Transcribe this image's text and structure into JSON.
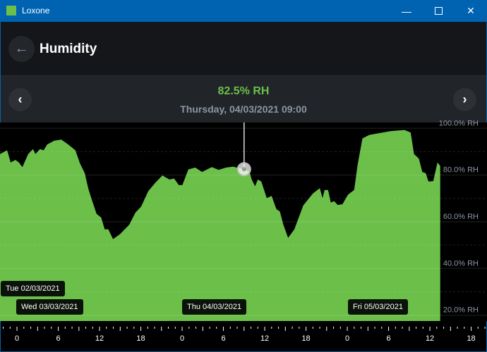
{
  "window": {
    "title": "Loxone",
    "app_icon": "loxone-logo-icon",
    "minimize_icon": "minimize-icon",
    "maximize_icon": "maximize-icon",
    "close_icon": "close-icon"
  },
  "header": {
    "title": "Humidity",
    "back_icon": "arrow-left-icon"
  },
  "readout": {
    "value": "82.5% RH",
    "datetime": "Thursday, 04/03/2021 09:00",
    "prev_icon": "chevron-left-icon",
    "next_icon": "chevron-right-icon"
  },
  "colors": {
    "titlebar": "#0063b1",
    "accent": "#6cc04a",
    "fill": "#6cc04a",
    "background": "#000000"
  },
  "day_labels": [
    "Tue 02/03/2021",
    "Wed 03/03/2021",
    "Thu 04/03/2021",
    "Fri 05/03/2021"
  ],
  "chart_data": {
    "type": "area",
    "ylim": [
      17.5,
      102.5
    ],
    "y_ticks": [
      100,
      80,
      60,
      40,
      20
    ],
    "y_tick_labels": [
      "100.0% RH",
      "80.0% RH",
      "60.0% RH",
      "40.0% RH",
      "20.0% RH"
    ],
    "xlim": [
      "2021-03-02 21:32",
      "2021-03-05 20:18"
    ],
    "x_tick_labels": [
      "0",
      "6",
      "12",
      "18",
      "0",
      "6",
      "12",
      "18",
      "0",
      "6",
      "12",
      "18"
    ],
    "grid": true,
    "selected_point": {
      "x": "2021-03-04 09:00",
      "y": 82.5
    },
    "series": [
      {
        "points": [
          [
            "2021-03-02 21:32",
            89.0
          ],
          [
            "2021-03-02 22:34",
            90.6
          ],
          [
            "2021-03-02 23:05",
            85.4
          ],
          [
            "2021-03-02 23:46",
            86.5
          ],
          [
            "2021-03-03 00:16",
            85.4
          ],
          [
            "2021-03-03 00:47",
            83.4
          ],
          [
            "2021-03-03 01:38",
            89.0
          ],
          [
            "2021-03-03 02:20",
            91.1
          ],
          [
            "2021-03-03 02:40",
            89.0
          ],
          [
            "2021-03-03 03:21",
            91.1
          ],
          [
            "2021-03-03 03:52",
            90.6
          ],
          [
            "2021-03-03 04:23",
            93.1
          ],
          [
            "2021-03-03 05:24",
            94.7
          ],
          [
            "2021-03-03 06:26",
            95.2
          ],
          [
            "2021-03-03 07:27",
            93.1
          ],
          [
            "2021-03-03 08:29",
            90.6
          ],
          [
            "2021-03-03 09:10",
            84.9
          ],
          [
            "2021-03-03 09:51",
            80.8
          ],
          [
            "2021-03-03 10:22",
            74.2
          ],
          [
            "2021-03-03 10:52",
            69.5
          ],
          [
            "2021-03-03 11:34",
            63.4
          ],
          [
            "2021-03-03 12:14",
            61.8
          ],
          [
            "2021-03-03 12:45",
            56.7
          ],
          [
            "2021-03-03 13:16",
            56.8
          ],
          [
            "2021-03-03 13:57",
            52.6
          ],
          [
            "2021-03-03 14:58",
            54.7
          ],
          [
            "2021-03-03 16:20",
            58.8
          ],
          [
            "2021-03-03 17:12",
            63.9
          ],
          [
            "2021-03-03 18:03",
            66.5
          ],
          [
            "2021-03-03 19:05",
            73.1
          ],
          [
            "2021-03-03 20:06",
            76.7
          ],
          [
            "2021-03-03 21:08",
            79.8
          ],
          [
            "2021-03-03 22:09",
            78.1
          ],
          [
            "2021-03-03 22:50",
            78.5
          ],
          [
            "2021-03-03 23:31",
            75.7
          ],
          [
            "2021-03-04 00:02",
            75.7
          ],
          [
            "2021-03-04 00:54",
            82.4
          ],
          [
            "2021-03-04 01:54",
            83.2
          ],
          [
            "2021-03-04 02:54",
            81.3
          ],
          [
            "2021-03-04 04:18",
            83.4
          ],
          [
            "2021-03-04 05:18",
            82.2
          ],
          [
            "2021-03-04 06:24",
            83.2
          ],
          [
            "2021-03-04 07:24",
            83.6
          ],
          [
            "2021-03-04 08:24",
            82.9
          ],
          [
            "2021-03-04 09:00",
            82.5
          ],
          [
            "2021-03-04 09:48",
            81.3
          ],
          [
            "2021-03-04 10:06",
            78.2
          ],
          [
            "2021-03-04 10:36",
            75.2
          ],
          [
            "2021-03-04 11:00",
            78.1
          ],
          [
            "2021-03-04 11:30",
            77.2
          ],
          [
            "2021-03-04 12:18",
            70.1
          ],
          [
            "2021-03-04 13:00",
            71.1
          ],
          [
            "2021-03-04 13:42",
            65.4
          ],
          [
            "2021-03-04 14:12",
            64.4
          ],
          [
            "2021-03-04 14:42",
            58.8
          ],
          [
            "2021-03-04 15:24",
            53.1
          ],
          [
            "2021-03-04 16:18",
            56.7
          ],
          [
            "2021-03-04 17:36",
            67.0
          ],
          [
            "2021-03-04 19:00",
            72.1
          ],
          [
            "2021-03-04 20:00",
            74.4
          ],
          [
            "2021-03-04 20:24",
            70.1
          ],
          [
            "2021-03-04 20:42",
            73.6
          ],
          [
            "2021-03-04 21:12",
            73.6
          ],
          [
            "2021-03-04 21:36",
            68.2
          ],
          [
            "2021-03-04 22:06",
            68.8
          ],
          [
            "2021-03-04 22:36",
            67.2
          ],
          [
            "2021-03-04 23:18",
            67.5
          ],
          [
            "2021-03-05 00:06",
            71.6
          ],
          [
            "2021-03-05 01:00",
            73.6
          ],
          [
            "2021-03-05 01:30",
            84.4
          ],
          [
            "2021-03-05 02:12",
            95.7
          ],
          [
            "2021-03-05 03:12",
            97.2
          ],
          [
            "2021-03-05 06:18",
            98.8
          ],
          [
            "2021-03-05 08:18",
            99.3
          ],
          [
            "2021-03-05 09:12",
            98.2
          ],
          [
            "2021-03-05 09:42",
            89.0
          ],
          [
            "2021-03-05 10:24",
            87.0
          ],
          [
            "2021-03-05 10:54",
            81.3
          ],
          [
            "2021-03-05 11:24",
            80.8
          ],
          [
            "2021-03-05 11:48",
            77.2
          ],
          [
            "2021-03-05 12:30",
            77.4
          ],
          [
            "2021-03-05 13:06",
            85.4
          ],
          [
            "2021-03-05 13:30",
            83.9
          ]
        ]
      }
    ]
  }
}
